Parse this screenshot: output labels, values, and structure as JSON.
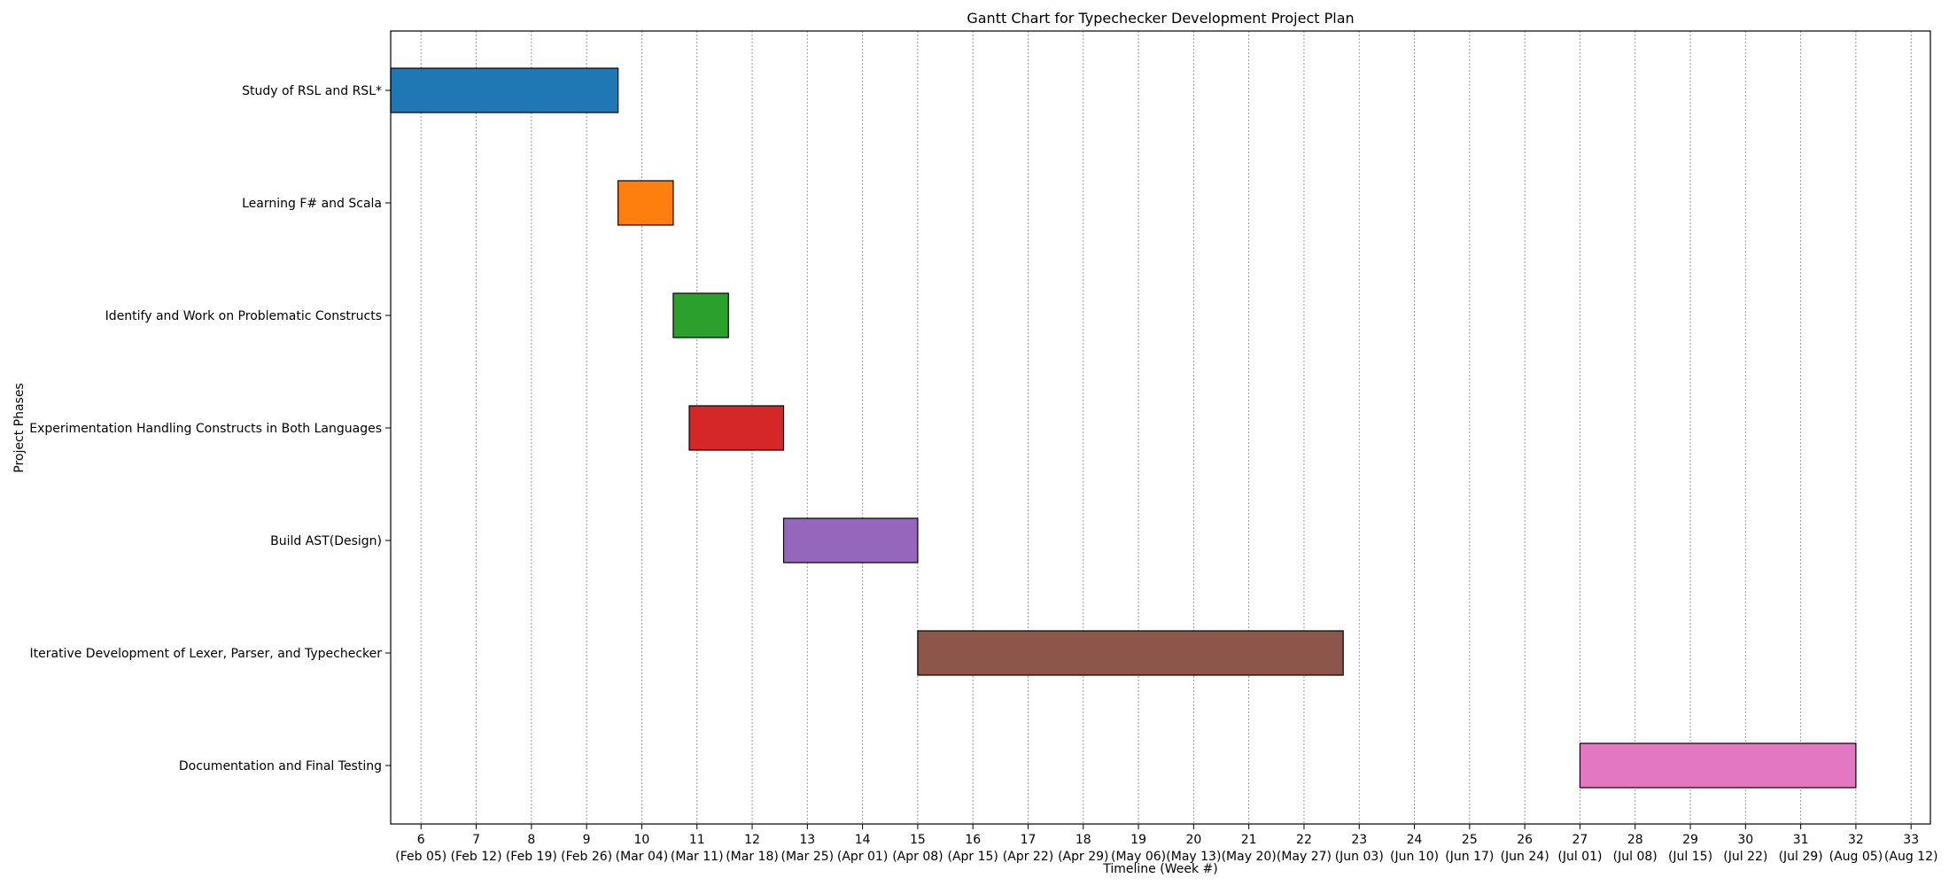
{
  "chart_data": {
    "type": "bar",
    "orientation": "horizontal-gantt",
    "title": "Gantt Chart for Typechecker Development Project Plan",
    "xlabel": "Timeline (Week #)",
    "ylabel": "Project Phases",
    "xlim": [
      5.45,
      33.35
    ],
    "grid": {
      "x": true,
      "y": false,
      "style": "dotted"
    },
    "x_ticks": [
      {
        "week": 6,
        "label": "6",
        "date": "(Feb 05)"
      },
      {
        "week": 7,
        "label": "7",
        "date": "(Feb 12)"
      },
      {
        "week": 8,
        "label": "8",
        "date": "(Feb 19)"
      },
      {
        "week": 9,
        "label": "9",
        "date": "(Feb 26)"
      },
      {
        "week": 10,
        "label": "10",
        "date": "(Mar 04)"
      },
      {
        "week": 11,
        "label": "11",
        "date": "(Mar 11)"
      },
      {
        "week": 12,
        "label": "12",
        "date": "(Mar 18)"
      },
      {
        "week": 13,
        "label": "13",
        "date": "(Mar 25)"
      },
      {
        "week": 14,
        "label": "14",
        "date": "(Apr 01)"
      },
      {
        "week": 15,
        "label": "15",
        "date": "(Apr 08)"
      },
      {
        "week": 16,
        "label": "16",
        "date": "(Apr 15)"
      },
      {
        "week": 17,
        "label": "17",
        "date": "(Apr 22)"
      },
      {
        "week": 18,
        "label": "18",
        "date": "(Apr 29)"
      },
      {
        "week": 19,
        "label": "19",
        "date": "(May 06)"
      },
      {
        "week": 20,
        "label": "20",
        "date": "(May 13)"
      },
      {
        "week": 21,
        "label": "21",
        "date": "(May 20)"
      },
      {
        "week": 22,
        "label": "22",
        "date": "(May 27)"
      },
      {
        "week": 23,
        "label": "23",
        "date": "(Jun 03)"
      },
      {
        "week": 24,
        "label": "24",
        "date": "(Jun 10)"
      },
      {
        "week": 25,
        "label": "25",
        "date": "(Jun 17)"
      },
      {
        "week": 26,
        "label": "26",
        "date": "(Jun 24)"
      },
      {
        "week": 27,
        "label": "27",
        "date": "(Jul 01)"
      },
      {
        "week": 28,
        "label": "28",
        "date": "(Jul 08)"
      },
      {
        "week": 29,
        "label": "29",
        "date": "(Jul 15)"
      },
      {
        "week": 30,
        "label": "30",
        "date": "(Jul 22)"
      },
      {
        "week": 31,
        "label": "31",
        "date": "(Jul 29)"
      },
      {
        "week": 32,
        "label": "32",
        "date": "(Aug 05)"
      },
      {
        "week": 33,
        "label": "33",
        "date": "(Aug 12)"
      }
    ],
    "tasks": [
      {
        "name": "Study of RSL and RSL*",
        "start": 5.45,
        "end": 9.57,
        "color": "#1f77b4"
      },
      {
        "name": "Learning F# and Scala",
        "start": 9.57,
        "end": 10.57,
        "color": "#ff7f0e"
      },
      {
        "name": "Identify and Work on Problematic Constructs",
        "start": 10.57,
        "end": 11.57,
        "color": "#2ca02c"
      },
      {
        "name": "Experimentation Handling Constructs in Both Languages",
        "start": 10.86,
        "end": 12.57,
        "color": "#d62728"
      },
      {
        "name": "Build AST(Design)",
        "start": 12.57,
        "end": 15.0,
        "color": "#9467bd"
      },
      {
        "name": "Iterative Development of Lexer, Parser, and Typechecker",
        "start": 15.0,
        "end": 22.71,
        "color": "#8c564b"
      },
      {
        "name": "Documentation and Final Testing",
        "start": 27.0,
        "end": 32.0,
        "color": "#e377c2"
      }
    ]
  }
}
